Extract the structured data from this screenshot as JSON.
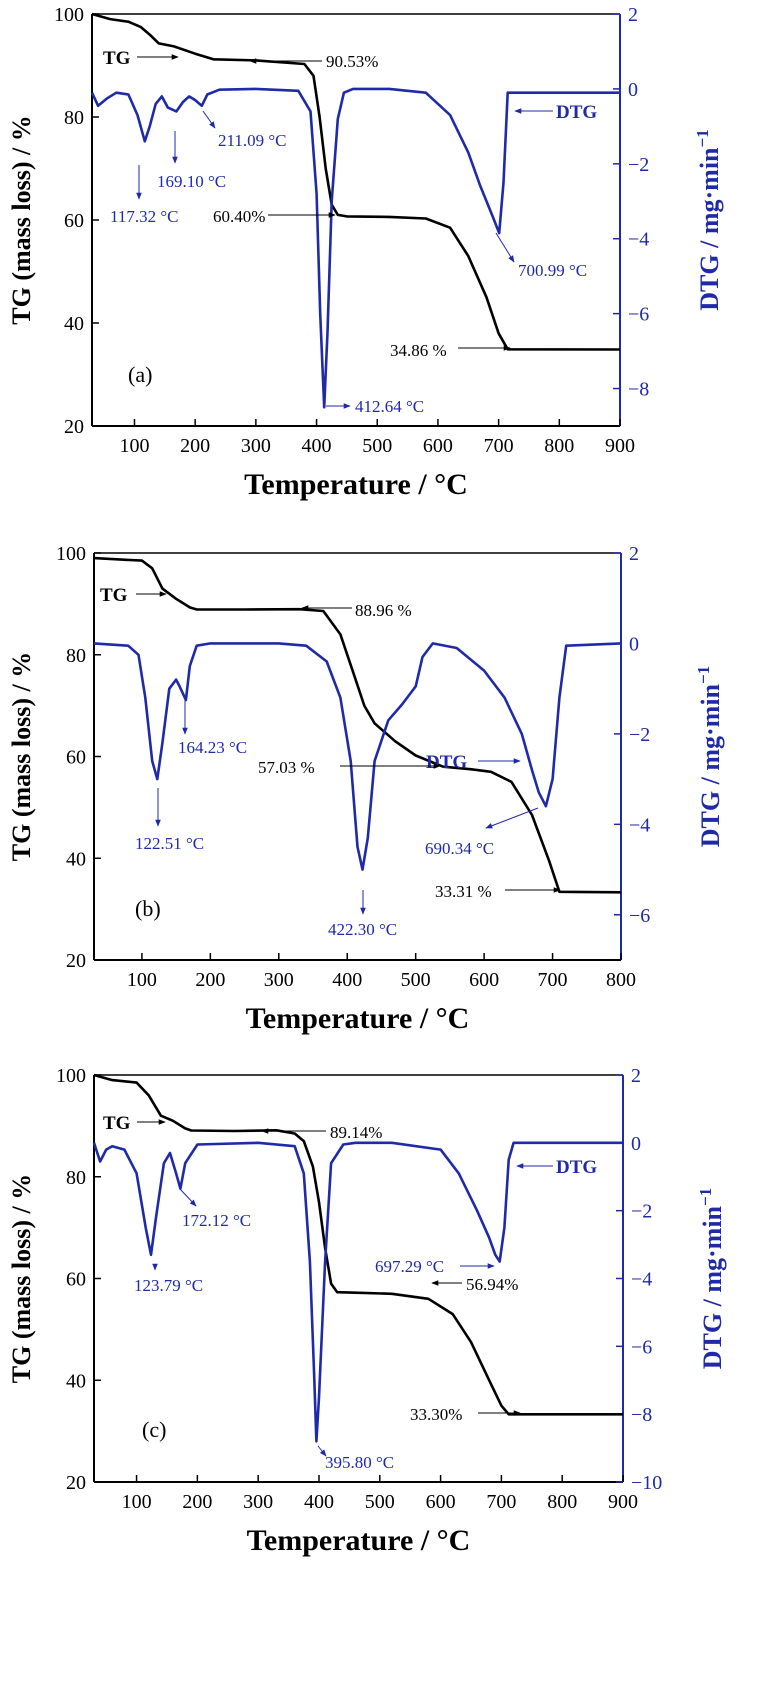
{
  "colors": {
    "tg": "#000000",
    "dtg": "#1f2aa8",
    "frame": "#000000",
    "right_axis": "#1f2aa8"
  },
  "chart_data": [
    {
      "type": "line",
      "panel_label": "(a)",
      "xlabel": "Temperature / °C",
      "ylabel": "TG (mass loss) / %",
      "y2label": "DTG / mg·min",
      "y2label_sup": "−1",
      "xlim": [
        30,
        900
      ],
      "xticks": [
        100,
        200,
        300,
        400,
        500,
        600,
        700,
        800,
        900
      ],
      "ylim": [
        20,
        100
      ],
      "yticks": [
        20,
        40,
        60,
        80,
        100
      ],
      "y2lim": [
        -9,
        2
      ],
      "y2ticks": [
        -8,
        -6,
        -4,
        -2,
        0,
        2
      ],
      "series": [
        {
          "name": "TG",
          "axis": "left",
          "x": [
            30,
            60,
            90,
            110,
            125,
            140,
            165,
            200,
            230,
            300,
            380,
            395,
            405,
            415,
            425,
            435,
            450,
            520,
            580,
            620,
            650,
            680,
            700,
            715,
            900
          ],
          "y": [
            100,
            99,
            98.5,
            97.5,
            96,
            94.3,
            93.7,
            92.3,
            91.2,
            91.0,
            90.3,
            88,
            80,
            70,
            63,
            61,
            60.7,
            60.6,
            60.3,
            58.5,
            53,
            45,
            38,
            34.9,
            34.86
          ]
        },
        {
          "name": "DTG",
          "axis": "right",
          "x": [
            30,
            40,
            55,
            70,
            90,
            105,
            117,
            125,
            135,
            145,
            155,
            169,
            180,
            190,
            200,
            211,
            220,
            240,
            300,
            370,
            390,
            400,
            406,
            412.6,
            418,
            425,
            435,
            445,
            460,
            520,
            580,
            620,
            650,
            670,
            690,
            700.99,
            708,
            715,
            900
          ],
          "y": [
            -0.1,
            -0.45,
            -0.25,
            -0.1,
            -0.15,
            -0.7,
            -1.4,
            -1.0,
            -0.4,
            -0.2,
            -0.5,
            -0.6,
            -0.35,
            -0.2,
            -0.3,
            -0.45,
            -0.15,
            -0.02,
            0,
            -0.05,
            -0.6,
            -2.8,
            -6.0,
            -8.5,
            -6.5,
            -3.0,
            -0.8,
            -0.1,
            0,
            0,
            -0.1,
            -0.7,
            -1.7,
            -2.6,
            -3.4,
            -3.85,
            -2.5,
            -0.1,
            -0.1
          ]
        }
      ],
      "annotations": [
        {
          "id": "tg-label",
          "text": "TG"
        },
        {
          "id": "dtg-label",
          "text": "DTG"
        },
        {
          "id": "p1",
          "text": "90.53%"
        },
        {
          "id": "p2",
          "text": "60.40%"
        },
        {
          "id": "p3",
          "text": "34.86 %"
        },
        {
          "id": "t1",
          "text": "117.32 °C"
        },
        {
          "id": "t2",
          "text": "169.10 °C"
        },
        {
          "id": "t3",
          "text": "211.09 °C"
        },
        {
          "id": "t4",
          "text": "412.64 °C"
        },
        {
          "id": "t5",
          "text": "700.99 °C"
        }
      ]
    },
    {
      "type": "line",
      "panel_label": "(b)",
      "xlabel": "Temperature / °C",
      "ylabel": "TG (mass loss) / %",
      "y2label": "DTG / mg·min",
      "y2label_sup": "−1",
      "xlim": [
        30,
        800
      ],
      "xticks": [
        100,
        200,
        300,
        400,
        500,
        600,
        700,
        800
      ],
      "ylim": [
        20,
        100
      ],
      "yticks": [
        20,
        40,
        60,
        80,
        100
      ],
      "y2lim": [
        -7,
        2
      ],
      "y2ticks": [
        -6,
        -4,
        -2,
        0,
        2
      ],
      "series": [
        {
          "name": "TG",
          "axis": "left",
          "x": [
            30,
            70,
            100,
            115,
            130,
            150,
            170,
            180,
            250,
            330,
            365,
            390,
            410,
            425,
            440,
            470,
            500,
            540,
            580,
            610,
            640,
            670,
            695,
            710,
            800
          ],
          "y": [
            99,
            98.7,
            98.5,
            97,
            93,
            91,
            89.3,
            88.9,
            88.9,
            88.96,
            88.6,
            84,
            76,
            70,
            66.5,
            63,
            60.2,
            58.0,
            57.5,
            57.0,
            55.0,
            48.5,
            39.5,
            33.4,
            33.31
          ]
        },
        {
          "name": "DTG",
          "axis": "right",
          "x": [
            30,
            80,
            95,
            105,
            115,
            122.51,
            130,
            140,
            150,
            155,
            164.23,
            170,
            180,
            200,
            300,
            340,
            370,
            390,
            405,
            415,
            422.3,
            430,
            440,
            460,
            480,
            500,
            510,
            525,
            560,
            600,
            630,
            655,
            670,
            680,
            690.34,
            700,
            710,
            720,
            800
          ],
          "y": [
            0,
            -0.05,
            -0.25,
            -1.2,
            -2.6,
            -3.0,
            -2.2,
            -1.0,
            -0.8,
            -0.95,
            -1.25,
            -0.5,
            -0.05,
            0,
            0,
            -0.05,
            -0.4,
            -1.2,
            -2.6,
            -4.5,
            -5.0,
            -4.3,
            -2.6,
            -1.7,
            -1.35,
            -0.95,
            -0.3,
            0,
            -0.1,
            -0.6,
            -1.2,
            -2.0,
            -2.8,
            -3.3,
            -3.6,
            -3.0,
            -1.2,
            -0.05,
            0
          ]
        }
      ],
      "annotations": [
        {
          "id": "tg-label",
          "text": "TG"
        },
        {
          "id": "dtg-label",
          "text": "DTG"
        },
        {
          "id": "p1",
          "text": "88.96 %"
        },
        {
          "id": "p2",
          "text": "57.03 %"
        },
        {
          "id": "p3",
          "text": "33.31 %"
        },
        {
          "id": "t1",
          "text": "122.51 °C"
        },
        {
          "id": "t2",
          "text": "164.23 °C"
        },
        {
          "id": "t4",
          "text": "422.30 °C"
        },
        {
          "id": "t5",
          "text": "690.34 °C"
        }
      ]
    },
    {
      "type": "line",
      "panel_label": "(c)",
      "xlabel": "Temperature / °C",
      "ylabel": "TG (mass loss) / %",
      "y2label": "DTG / mg·min",
      "y2label_sup": "−1",
      "xlim": [
        30,
        900
      ],
      "xticks": [
        100,
        200,
        300,
        400,
        500,
        600,
        700,
        800,
        900
      ],
      "ylim": [
        20,
        100
      ],
      "yticks": [
        20,
        40,
        60,
        80,
        100
      ],
      "y2lim": [
        -10,
        2
      ],
      "y2ticks": [
        -10,
        -8,
        -6,
        -4,
        -2,
        0,
        2
      ],
      "series": [
        {
          "name": "TG",
          "axis": "left",
          "x": [
            30,
            60,
            100,
            120,
            140,
            160,
            180,
            190,
            260,
            330,
            360,
            375,
            390,
            400,
            410,
            420,
            430,
            460,
            520,
            580,
            620,
            650,
            680,
            700,
            712,
            900
          ],
          "y": [
            100,
            99,
            98.5,
            96,
            92,
            91,
            89.5,
            89.1,
            89.0,
            89.14,
            88.5,
            87,
            82,
            75,
            66,
            59,
            57.3,
            57.2,
            57.0,
            56.0,
            53,
            47.5,
            40,
            35,
            33.3,
            33.3
          ]
        },
        {
          "name": "DTG",
          "axis": "right",
          "x": [
            30,
            40,
            50,
            60,
            80,
            100,
            115,
            123.79,
            132,
            145,
            155,
            165,
            172.12,
            180,
            200,
            300,
            360,
            375,
            385,
            392,
            395.8,
            400,
            410,
            420,
            440,
            460,
            520,
            600,
            630,
            660,
            680,
            690,
            697.29,
            705,
            712,
            720,
            900
          ],
          "y": [
            0,
            -0.55,
            -0.2,
            -0.1,
            -0.2,
            -0.9,
            -2.5,
            -3.3,
            -2.2,
            -0.6,
            -0.3,
            -0.9,
            -1.35,
            -0.6,
            -0.05,
            0,
            -0.1,
            -0.9,
            -3.5,
            -6.8,
            -8.8,
            -7.5,
            -3.5,
            -0.6,
            -0.05,
            0,
            0,
            -0.2,
            -0.9,
            -2.0,
            -2.8,
            -3.3,
            -3.5,
            -2.5,
            -0.5,
            0,
            0
          ]
        }
      ],
      "annotations": [
        {
          "id": "tg-label",
          "text": "TG"
        },
        {
          "id": "dtg-label",
          "text": "DTG"
        },
        {
          "id": "p1",
          "text": "89.14%"
        },
        {
          "id": "p2",
          "text": "56.94%"
        },
        {
          "id": "p3",
          "text": "33.30%"
        },
        {
          "id": "t1",
          "text": "123.79 °C"
        },
        {
          "id": "t2",
          "text": "172.12 °C"
        },
        {
          "id": "t4",
          "text": "395.80 °C"
        },
        {
          "id": "t5",
          "text": "697.29 °C"
        }
      ]
    }
  ]
}
